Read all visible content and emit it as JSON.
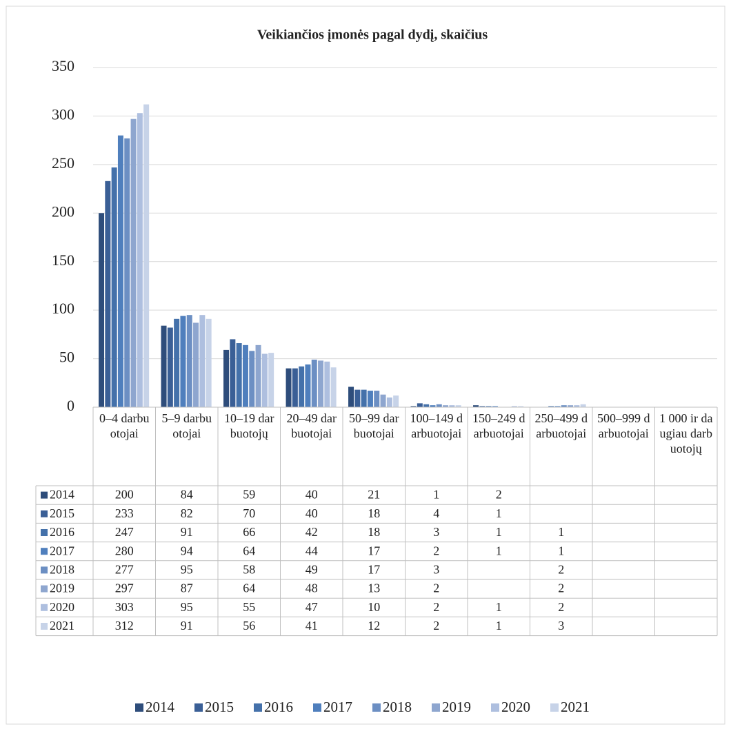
{
  "chart_data": {
    "type": "bar",
    "title": "Veikiančios įmonės pagal dydį, skaičius",
    "categories": [
      "0–4 darbuotojai",
      "5–9 darbuotojai",
      "10–19 darbuotojų",
      "20–49 darbuotojai",
      "50–99 darbuotojai",
      "100–149 darbuotojai",
      "150–249 darbuotojai",
      "250–499 darbuotojai",
      "500–999 darbuotojai",
      "1 000 ir daugiau darbuotojų"
    ],
    "series": [
      {
        "name": "2014",
        "color": "#2e4d7b",
        "values": [
          200,
          84,
          59,
          40,
          21,
          1,
          2,
          null,
          null,
          null
        ]
      },
      {
        "name": "2015",
        "color": "#3a5f96",
        "values": [
          233,
          82,
          70,
          40,
          18,
          4,
          1,
          null,
          null,
          null
        ]
      },
      {
        "name": "2016",
        "color": "#4471aa",
        "values": [
          247,
          91,
          66,
          42,
          18,
          3,
          1,
          1,
          null,
          null
        ]
      },
      {
        "name": "2017",
        "color": "#4f7fbd",
        "values": [
          280,
          94,
          64,
          44,
          17,
          2,
          1,
          1,
          null,
          null
        ]
      },
      {
        "name": "2018",
        "color": "#6c8fc3",
        "values": [
          277,
          95,
          58,
          49,
          17,
          3,
          null,
          2,
          null,
          null
        ]
      },
      {
        "name": "2019",
        "color": "#8ea6cf",
        "values": [
          297,
          87,
          64,
          48,
          13,
          2,
          null,
          2,
          null,
          null
        ]
      },
      {
        "name": "2020",
        "color": "#aebfdf",
        "values": [
          303,
          95,
          55,
          47,
          10,
          2,
          1,
          2,
          null,
          null
        ]
      },
      {
        "name": "2021",
        "color": "#c7d3e8",
        "values": [
          312,
          91,
          56,
          41,
          12,
          2,
          1,
          3,
          null,
          null
        ]
      }
    ],
    "ylim": [
      0,
      350
    ],
    "yticks": [
      0,
      50,
      100,
      150,
      200,
      250,
      300,
      350
    ],
    "grid": true,
    "legend": "bottom",
    "data_table": true
  }
}
